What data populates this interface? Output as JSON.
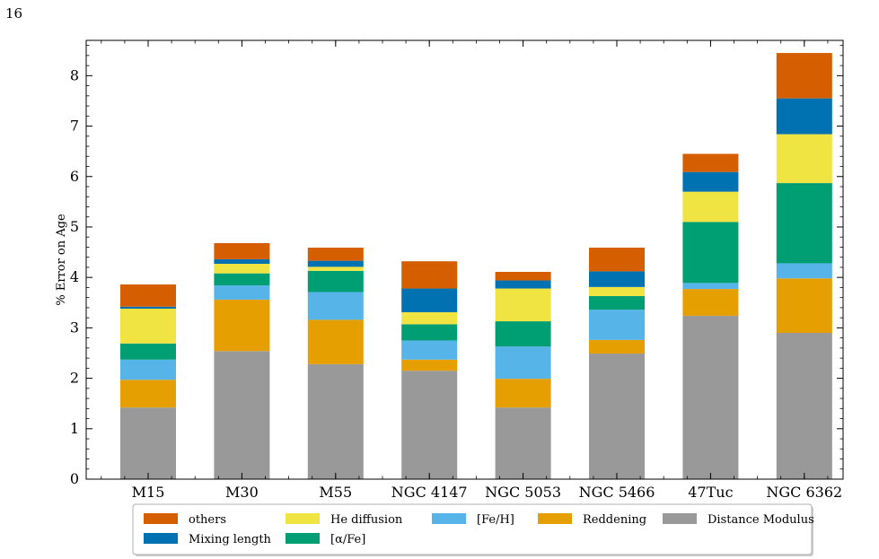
{
  "page_number": "16",
  "chart_data": {
    "type": "bar",
    "stacked": true,
    "title": "",
    "xlabel": "",
    "ylabel": "% Error on Age",
    "ylim": [
      0,
      8.7
    ],
    "yticks": [
      "0",
      "1",
      "2",
      "3",
      "4",
      "5",
      "6",
      "7",
      "8"
    ],
    "grid": false,
    "legend_position": "bottom-center, below plot",
    "categories": [
      "M15",
      "M30",
      "M55",
      "NGC 4147",
      "NGC 5053",
      "NGC 5466",
      "47Tuc",
      "NGC 6362"
    ],
    "series": [
      {
        "name": "Distance Modulus",
        "color": "#999999",
        "values": [
          1.42,
          2.54,
          2.28,
          2.15,
          1.42,
          2.49,
          3.24,
          2.9
        ]
      },
      {
        "name": "Reddening",
        "color": "#E69F00",
        "values": [
          0.55,
          1.02,
          0.88,
          0.22,
          0.57,
          0.27,
          0.53,
          1.08
        ]
      },
      {
        "name": "[Fe/H]",
        "color": "#56B4E9",
        "values": [
          0.4,
          0.28,
          0.55,
          0.38,
          0.64,
          0.6,
          0.12,
          0.3
        ]
      },
      {
        "name": "[α/Fe]",
        "color": "#009E73",
        "values": [
          0.32,
          0.24,
          0.42,
          0.32,
          0.5,
          0.27,
          1.21,
          1.59
        ]
      },
      {
        "name": "He diffusion",
        "color": "#F0E442",
        "values": [
          0.69,
          0.19,
          0.08,
          0.24,
          0.65,
          0.18,
          0.6,
          0.97
        ]
      },
      {
        "name": "Mixing length",
        "color": "#0072B2",
        "values": [
          0.04,
          0.09,
          0.12,
          0.47,
          0.16,
          0.31,
          0.39,
          0.71
        ]
      },
      {
        "name": "others",
        "color": "#D55E00",
        "values": [
          0.44,
          0.32,
          0.26,
          0.54,
          0.17,
          0.47,
          0.36,
          0.9
        ]
      }
    ],
    "legend_order": [
      "others",
      "He diffusion",
      "[Fe/H]",
      "Reddening",
      "Distance Modulus",
      "Mixing length",
      "[α/Fe]"
    ]
  }
}
